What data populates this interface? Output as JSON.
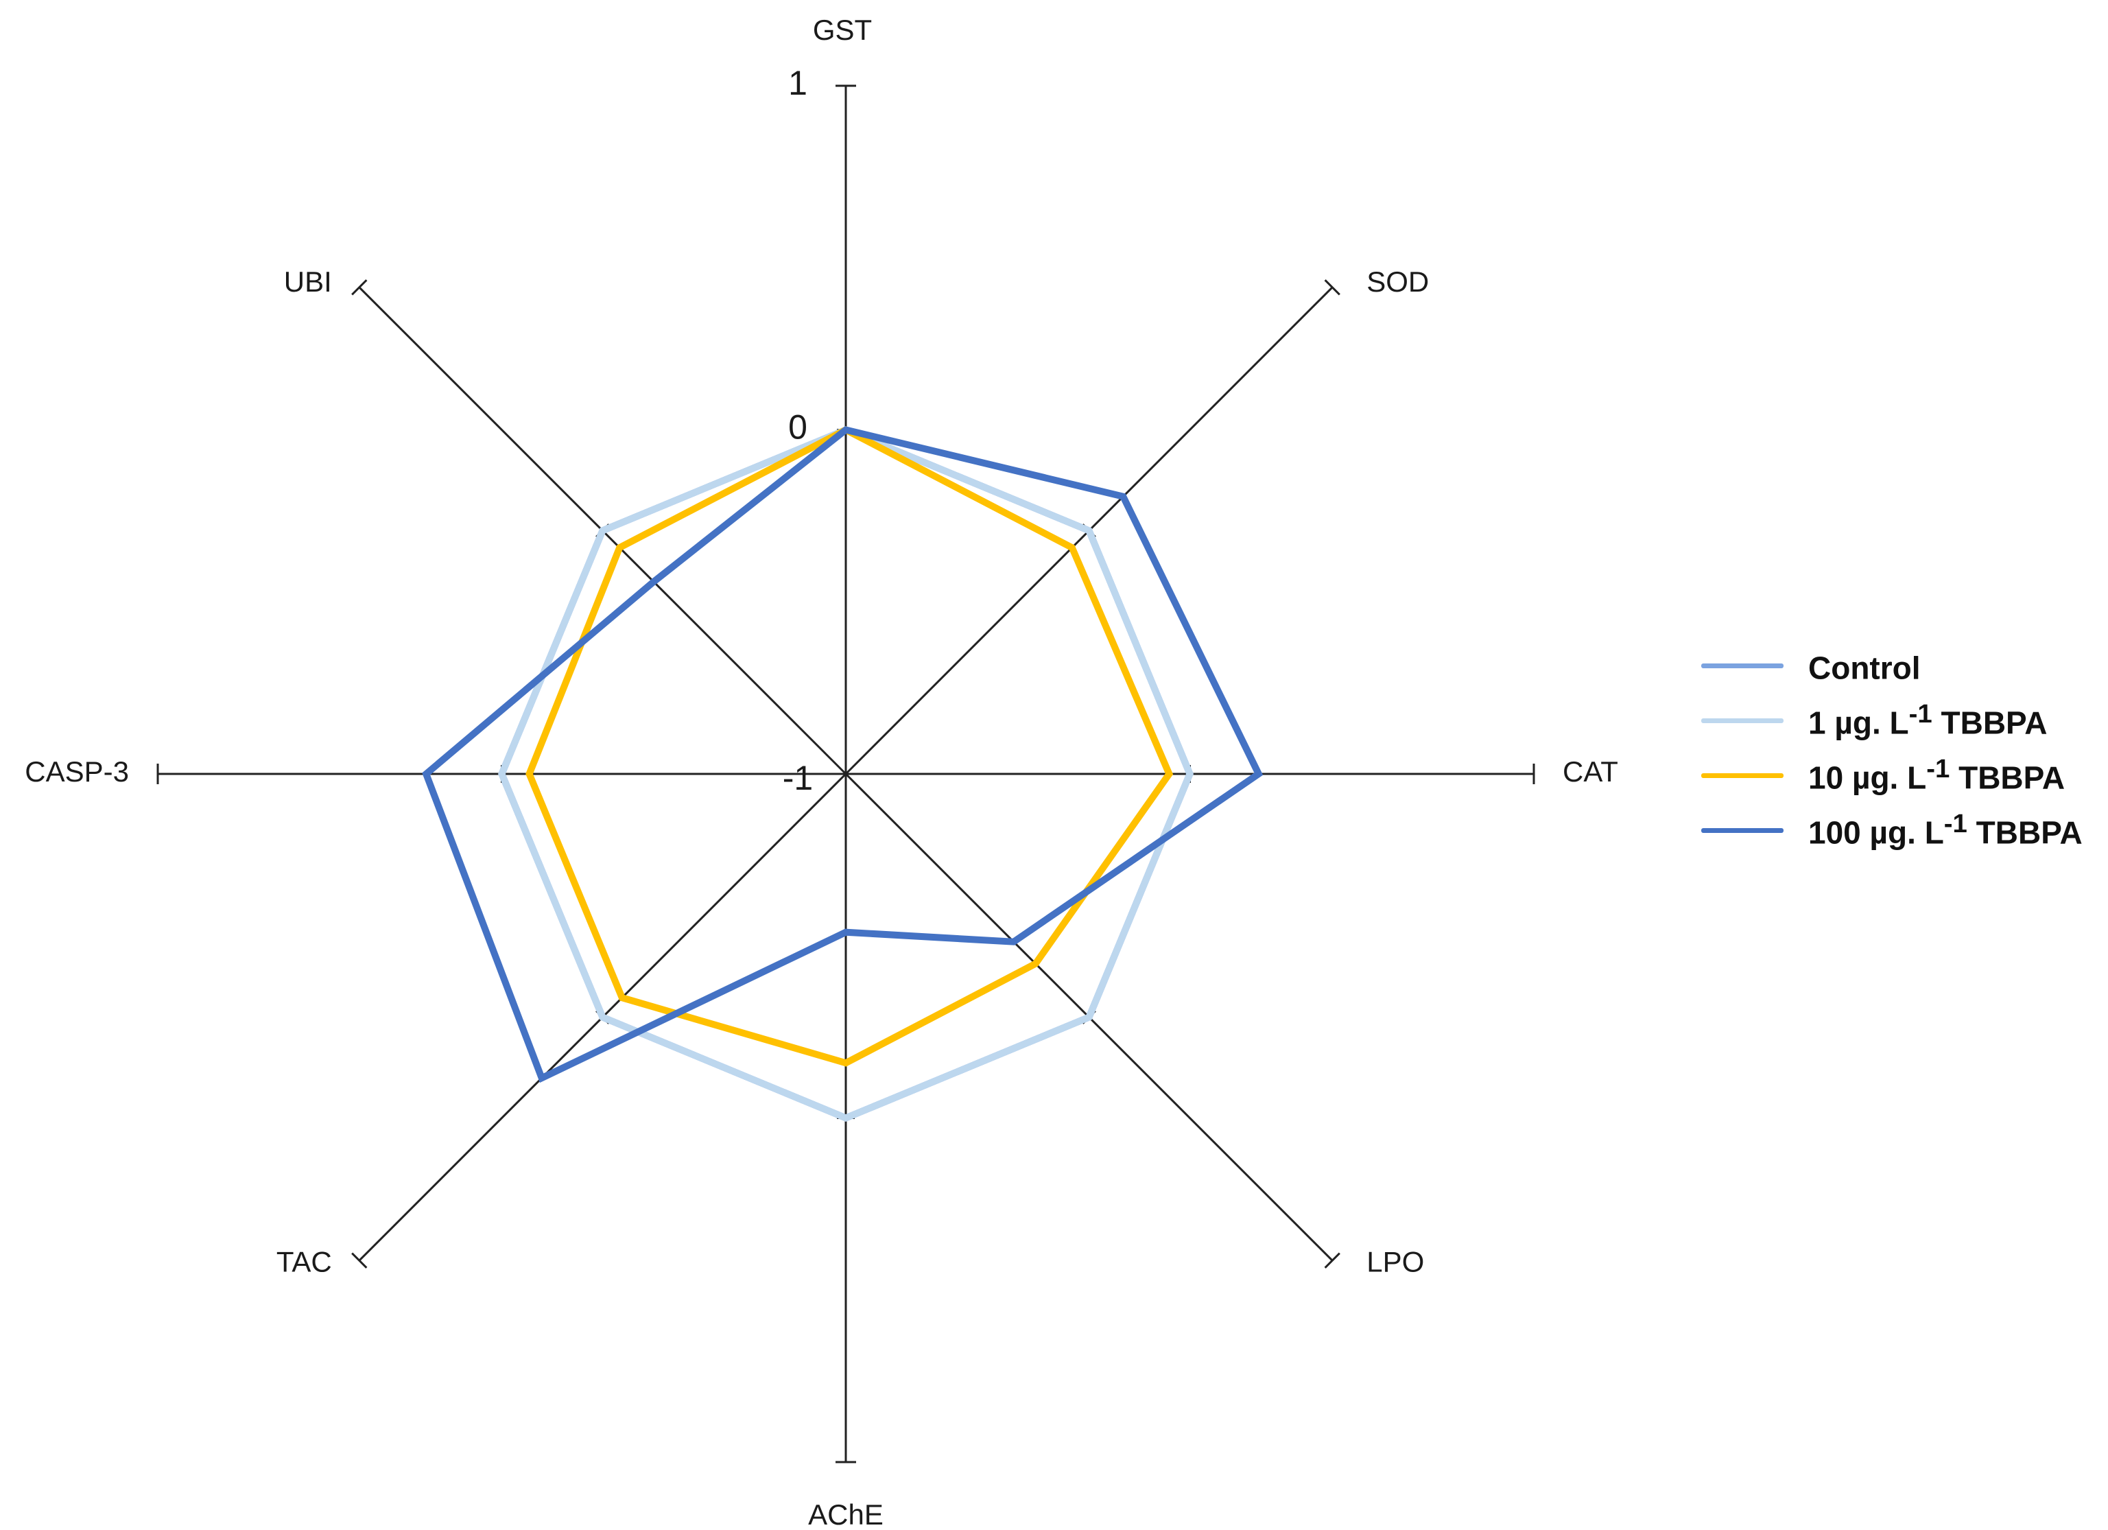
{
  "chart_data": {
    "type": "radar",
    "axes": [
      "GST",
      "SOD",
      "CAT",
      "LPO",
      "AChE",
      "TAC",
      "CASP-3",
      "UBI"
    ],
    "range": [
      -1,
      1
    ],
    "tick_labels": [
      "1",
      "0",
      "-1"
    ],
    "grid": false,
    "legend_position": "right",
    "series": [
      {
        "name": "Control",
        "color": "#7ba3e0",
        "values": [
          0,
          0,
          0,
          0,
          0,
          0,
          0,
          0
        ]
      },
      {
        "name": "1 µg. L-1 TBBPA",
        "color": "#bdd7ee",
        "values": [
          0,
          0,
          0,
          0,
          0,
          0,
          0,
          0
        ]
      },
      {
        "name": "10 µg. L-1 TBBPA",
        "color": "#ffc000",
        "values": [
          0,
          -0.07,
          -0.06,
          -0.22,
          -0.16,
          -0.08,
          -0.08,
          -0.07
        ]
      },
      {
        "name": "100 µg. L-1 TBBPA",
        "color": "#4472c4",
        "values": [
          0,
          0.14,
          0.2,
          -0.31,
          -0.54,
          0.25,
          0.22,
          -0.21
        ]
      }
    ]
  },
  "legend": {
    "items": [
      {
        "prefix": "Control",
        "sup": "",
        "suffix": ""
      },
      {
        "prefix": "1 µg. L",
        "sup": "-1",
        "suffix": " TBBPA"
      },
      {
        "prefix": "10 µg. L",
        "sup": "-1",
        "suffix": " TBBPA"
      },
      {
        "prefix": "100 µg. L",
        "sup": "-1",
        "suffix": " TBBPA"
      }
    ]
  }
}
